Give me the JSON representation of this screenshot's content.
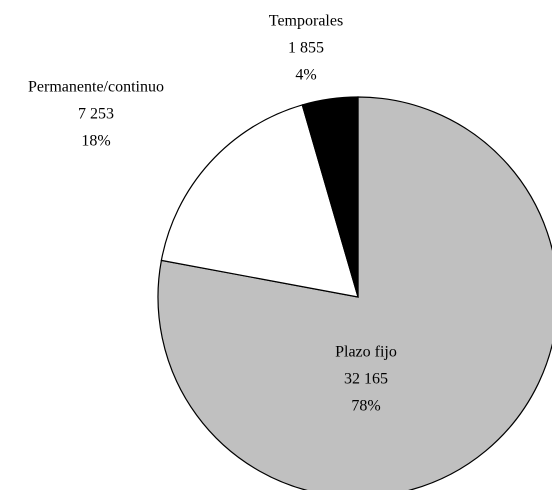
{
  "chart_data": {
    "type": "pie",
    "categories": [
      "Plazo fijo",
      "Permanente/continuo",
      "Temporales"
    ],
    "values": [
      32165,
      7253,
      1855
    ],
    "value_labels": [
      "32 165",
      "7 253",
      "1 855"
    ],
    "percentages": [
      78,
      18,
      4
    ],
    "percent_labels": [
      "78%",
      "18%",
      "4%"
    ],
    "colors": [
      "#c0c0c0",
      "#ffffff",
      "#000000"
    ]
  }
}
